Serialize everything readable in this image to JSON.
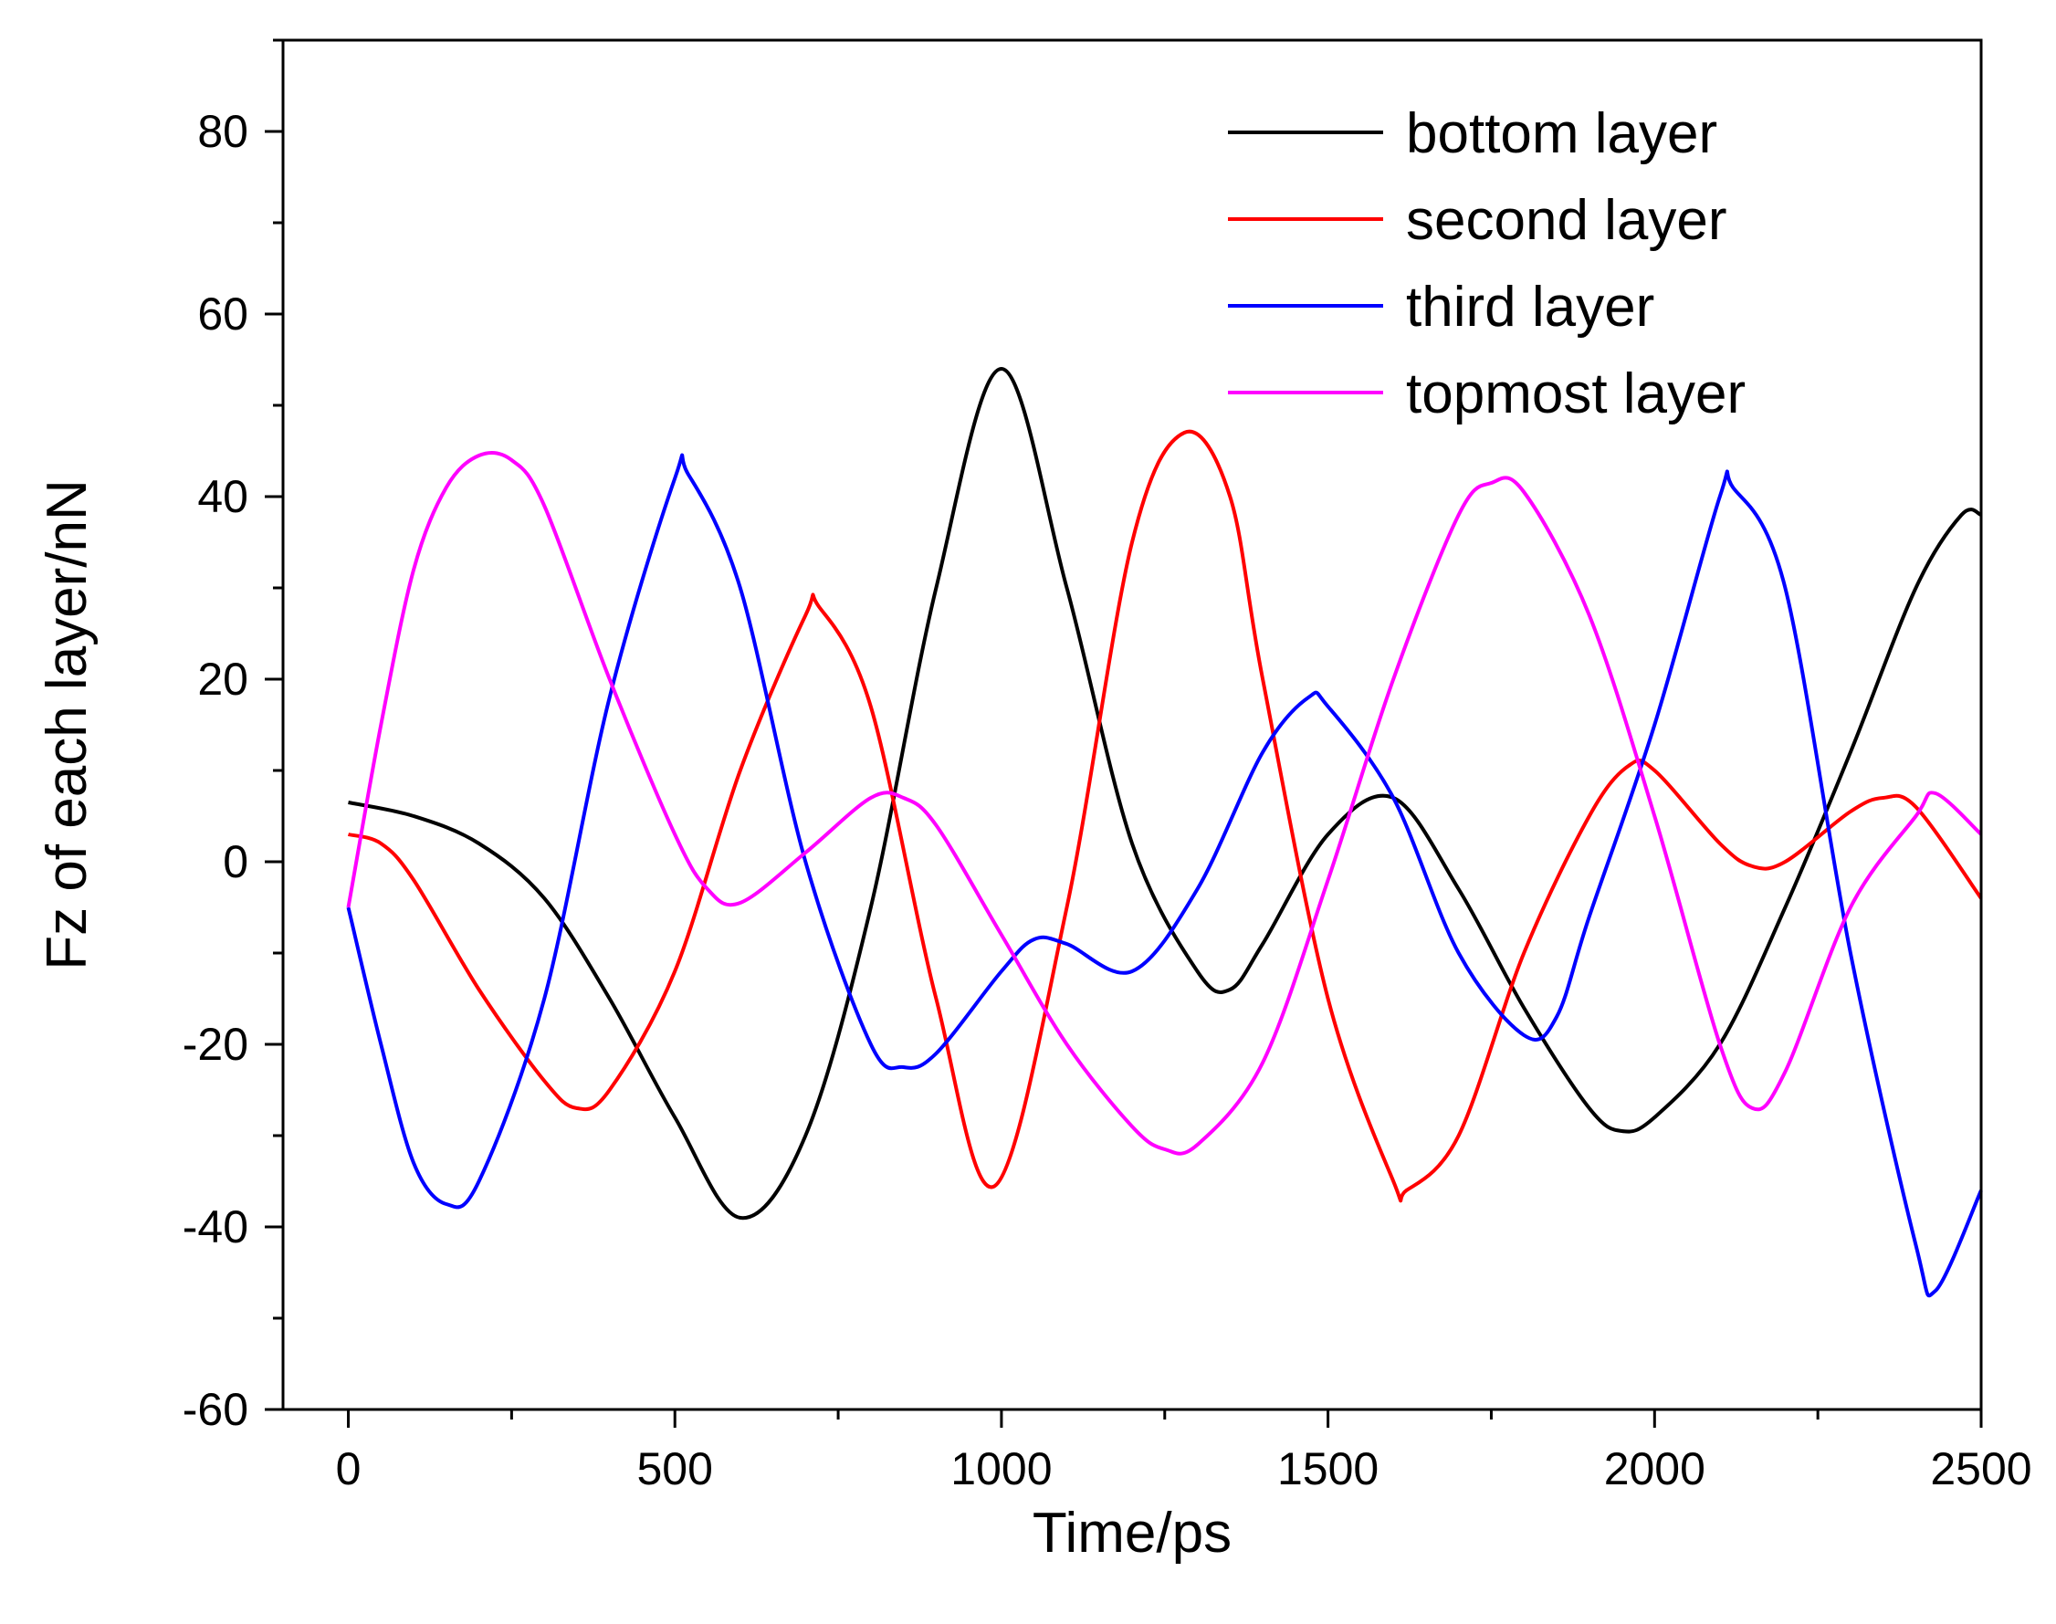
{
  "chart_data": {
    "type": "line",
    "title": "",
    "xlabel": "Time/ps",
    "ylabel": "Fz of each layer/nN",
    "xlim": [
      -100,
      2500
    ],
    "ylim": [
      -60,
      90
    ],
    "x_ticks": [
      0,
      500,
      1000,
      1500,
      2000,
      2500
    ],
    "y_ticks": [
      -60,
      -40,
      -20,
      0,
      20,
      40,
      60,
      80
    ],
    "x_minor_step": 250,
    "y_minor_step": 10,
    "grid": false,
    "legend_position": "top-right",
    "series": [
      {
        "name": "bottom layer",
        "color": "#000000",
        "points": [
          [
            0,
            6.5
          ],
          [
            100,
            5
          ],
          [
            200,
            2
          ],
          [
            300,
            -4
          ],
          [
            400,
            -15
          ],
          [
            500,
            -28
          ],
          [
            600,
            -39
          ],
          [
            700,
            -30
          ],
          [
            800,
            -5
          ],
          [
            900,
            30
          ],
          [
            1000,
            54
          ],
          [
            1100,
            30
          ],
          [
            1200,
            2
          ],
          [
            1300,
            -12
          ],
          [
            1350,
            -14
          ],
          [
            1400,
            -9
          ],
          [
            1500,
            3
          ],
          [
            1600,
            7
          ],
          [
            1700,
            -3
          ],
          [
            1800,
            -16
          ],
          [
            1900,
            -27
          ],
          [
            1950,
            -29.5
          ],
          [
            2000,
            -28
          ],
          [
            2100,
            -20
          ],
          [
            2200,
            -5
          ],
          [
            2300,
            12
          ],
          [
            2400,
            30
          ],
          [
            2470,
            38
          ],
          [
            2500,
            38
          ]
        ]
      },
      {
        "name": "second layer",
        "color": "#ff0000",
        "points": [
          [
            0,
            3
          ],
          [
            50,
            2
          ],
          [
            100,
            -2
          ],
          [
            200,
            -14
          ],
          [
            300,
            -24
          ],
          [
            350,
            -27
          ],
          [
            400,
            -25
          ],
          [
            500,
            -12
          ],
          [
            600,
            10
          ],
          [
            700,
            27
          ],
          [
            720,
            28
          ],
          [
            800,
            17
          ],
          [
            900,
            -15
          ],
          [
            990,
            -35.5
          ],
          [
            1100,
            -5
          ],
          [
            1200,
            35
          ],
          [
            1280,
            47
          ],
          [
            1350,
            40
          ],
          [
            1400,
            20
          ],
          [
            1500,
            -15
          ],
          [
            1600,
            -35
          ],
          [
            1620,
            -36
          ],
          [
            1700,
            -30
          ],
          [
            1800,
            -10
          ],
          [
            1900,
            5
          ],
          [
            1960,
            10.5
          ],
          [
            2000,
            10
          ],
          [
            2100,
            2
          ],
          [
            2150,
            -0.5
          ],
          [
            2200,
            0
          ],
          [
            2300,
            5.5
          ],
          [
            2350,
            7
          ],
          [
            2400,
            6
          ],
          [
            2500,
            -4
          ]
        ]
      },
      {
        "name": "third layer",
        "color": "#0000ff",
        "points": [
          [
            0,
            -5
          ],
          [
            50,
            -20
          ],
          [
            100,
            -33
          ],
          [
            150,
            -37.5
          ],
          [
            200,
            -35
          ],
          [
            300,
            -15
          ],
          [
            400,
            18
          ],
          [
            500,
            42
          ],
          [
            520,
            42.5
          ],
          [
            600,
            30
          ],
          [
            700,
            0
          ],
          [
            800,
            -20
          ],
          [
            850,
            -22.5
          ],
          [
            900,
            -21
          ],
          [
            1000,
            -12
          ],
          [
            1050,
            -8.5
          ],
          [
            1100,
            -9
          ],
          [
            1200,
            -12
          ],
          [
            1300,
            -3
          ],
          [
            1400,
            12
          ],
          [
            1470,
            18
          ],
          [
            1500,
            17
          ],
          [
            1600,
            7
          ],
          [
            1700,
            -10
          ],
          [
            1800,
            -19
          ],
          [
            1850,
            -17
          ],
          [
            1900,
            -6
          ],
          [
            2000,
            15
          ],
          [
            2100,
            40
          ],
          [
            2120,
            41
          ],
          [
            2200,
            30
          ],
          [
            2300,
            -10
          ],
          [
            2400,
            -42
          ],
          [
            2430,
            -47
          ],
          [
            2500,
            -36
          ]
        ]
      },
      {
        "name": "topmost layer",
        "color": "#ff00ff",
        "points": [
          [
            0,
            -5
          ],
          [
            50,
            15
          ],
          [
            100,
            32
          ],
          [
            150,
            41
          ],
          [
            200,
            44.5
          ],
          [
            250,
            44
          ],
          [
            300,
            39
          ],
          [
            400,
            20
          ],
          [
            500,
            3
          ],
          [
            550,
            -3
          ],
          [
            600,
            -4.5
          ],
          [
            700,
            1
          ],
          [
            800,
            7
          ],
          [
            850,
            7
          ],
          [
            900,
            4
          ],
          [
            1000,
            -8
          ],
          [
            1100,
            -20
          ],
          [
            1200,
            -29
          ],
          [
            1250,
            -31.5
          ],
          [
            1300,
            -31
          ],
          [
            1400,
            -22
          ],
          [
            1500,
            -2
          ],
          [
            1600,
            20
          ],
          [
            1700,
            38
          ],
          [
            1750,
            41.5
          ],
          [
            1800,
            40.5
          ],
          [
            1900,
            27
          ],
          [
            2000,
            5
          ],
          [
            2100,
            -20
          ],
          [
            2150,
            -27
          ],
          [
            2200,
            -23
          ],
          [
            2300,
            -5
          ],
          [
            2400,
            5
          ],
          [
            2430,
            7.5
          ],
          [
            2500,
            3
          ]
        ]
      }
    ]
  }
}
